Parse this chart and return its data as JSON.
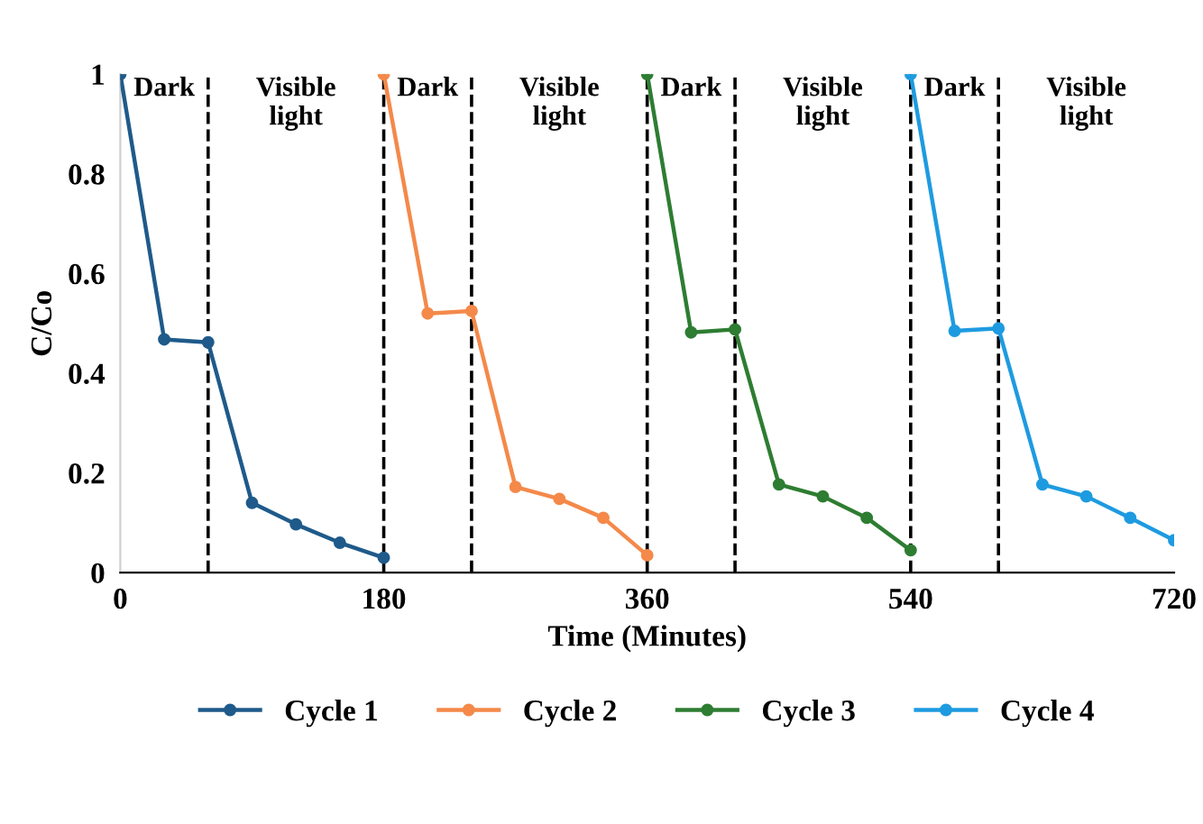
{
  "chart_data": {
    "type": "line",
    "xlabel": "Time (Minutes)",
    "ylabel": "C/Co",
    "xlim": [
      0,
      720
    ],
    "xticks": [
      0,
      180,
      360,
      540,
      720
    ],
    "ylim": [
      0,
      1
    ],
    "yticks": [
      0,
      0.2,
      0.4,
      0.6,
      0.8,
      1
    ],
    "grid": false,
    "legend": "bottom",
    "marker": "circle",
    "line_style": "solid",
    "series": [
      {
        "name": "Cycle 1",
        "color": "#1f5a8a",
        "x": [
          0,
          30,
          60,
          90,
          120,
          150,
          180
        ],
        "values": [
          1,
          0.468,
          0.462,
          0.14,
          0.097,
          0.06,
          0.03
        ]
      },
      {
        "name": "Cycle 2",
        "color": "#f4894a",
        "x": [
          180,
          210,
          240,
          270,
          300,
          330,
          360
        ],
        "values": [
          1,
          0.52,
          0.525,
          0.172,
          0.148,
          0.11,
          0.035
        ]
      },
      {
        "name": "Cycle 3",
        "color": "#2e7d32",
        "x": [
          360,
          390,
          420,
          450,
          480,
          510,
          540
        ],
        "values": [
          1,
          0.482,
          0.488,
          0.177,
          0.153,
          0.11,
          0.045
        ]
      },
      {
        "name": "Cycle 4",
        "color": "#1e9be0",
        "x": [
          540,
          570,
          600,
          630,
          660,
          690,
          720
        ],
        "values": [
          1,
          0.485,
          0.49,
          0.177,
          0.153,
          0.11,
          0.065
        ]
      }
    ],
    "ref_lines": [
      {
        "axis": "x",
        "value": 60,
        "color": "#000000",
        "line_style": "dashed"
      },
      {
        "axis": "x",
        "value": 180,
        "color": "#000000",
        "line_style": "dashed"
      },
      {
        "axis": "x",
        "value": 240,
        "color": "#000000",
        "line_style": "dashed"
      },
      {
        "axis": "x",
        "value": 360,
        "color": "#000000",
        "line_style": "dashed"
      },
      {
        "axis": "x",
        "value": 420,
        "color": "#000000",
        "line_style": "dashed"
      },
      {
        "axis": "x",
        "value": 540,
        "color": "#000000",
        "line_style": "dashed"
      },
      {
        "axis": "x",
        "value": 600,
        "color": "#000000",
        "line_style": "dashed"
      }
    ],
    "annotations": [
      "Dark",
      "Visible\nlight",
      "Dark",
      "Visible\nlight",
      "Dark",
      "Visible\nlight",
      "Dark",
      "Visible\nlight"
    ]
  }
}
